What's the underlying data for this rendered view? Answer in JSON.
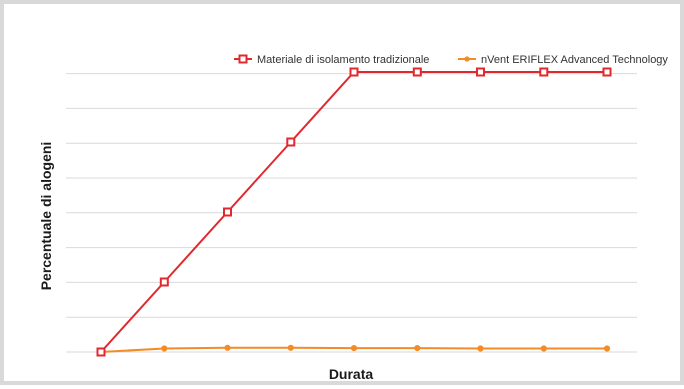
{
  "chart_data": {
    "type": "line",
    "title": "",
    "xlabel": "Durata",
    "ylabel": "Percentuale di alogeni",
    "x": [
      1,
      2,
      3,
      4,
      5,
      6,
      7,
      8,
      9
    ],
    "ylim": [
      0,
      8
    ],
    "grid": true,
    "legend_position": "top-right",
    "series": [
      {
        "name": "Materiale di isolamento tradizionale",
        "color": "#e0282e",
        "marker": "square",
        "values": [
          0,
          2,
          4,
          6,
          8,
          8,
          8,
          8,
          8
        ]
      },
      {
        "name": "nVent ERIFLEX Advanced Technology",
        "color": "#f28c28",
        "marker": "dot",
        "values": [
          0,
          0.1,
          0.12,
          0.12,
          0.11,
          0.11,
          0.1,
          0.1,
          0.1
        ]
      }
    ]
  }
}
